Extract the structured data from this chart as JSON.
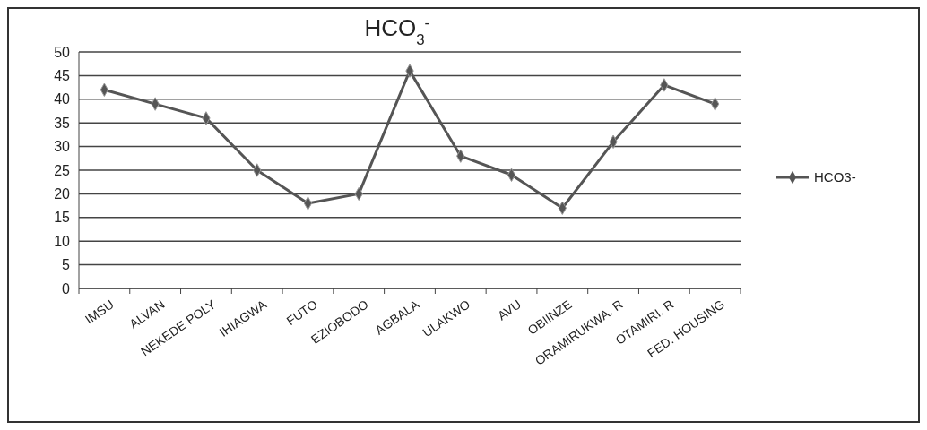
{
  "chart_data": {
    "type": "line",
    "title": "HCO$_{3}$$^{-}$",
    "categories": [
      "IMSU",
      "ALVAN",
      "NEKEDE POLY",
      "IHIAGWA",
      "FUTO",
      "EZIOBODO",
      "AGBALA",
      "ULAKWO",
      "AVU",
      "OBIINZE",
      "ORAMIRUKWA. R",
      "OTAMIRI. R",
      "FED. HOUSING"
    ],
    "series": [
      {
        "name": "HCO3-",
        "color": "#555555",
        "values": [
          42,
          39,
          36,
          25,
          18,
          20,
          46,
          28,
          24,
          17,
          31,
          43,
          39
        ]
      }
    ],
    "ylim": [
      0,
      50
    ],
    "yticks": [
      0,
      5,
      10,
      15,
      20,
      25,
      30,
      35,
      40,
      45,
      50
    ],
    "grid": "y",
    "legend": "right",
    "marker": "diamond",
    "line_style": "solid"
  }
}
